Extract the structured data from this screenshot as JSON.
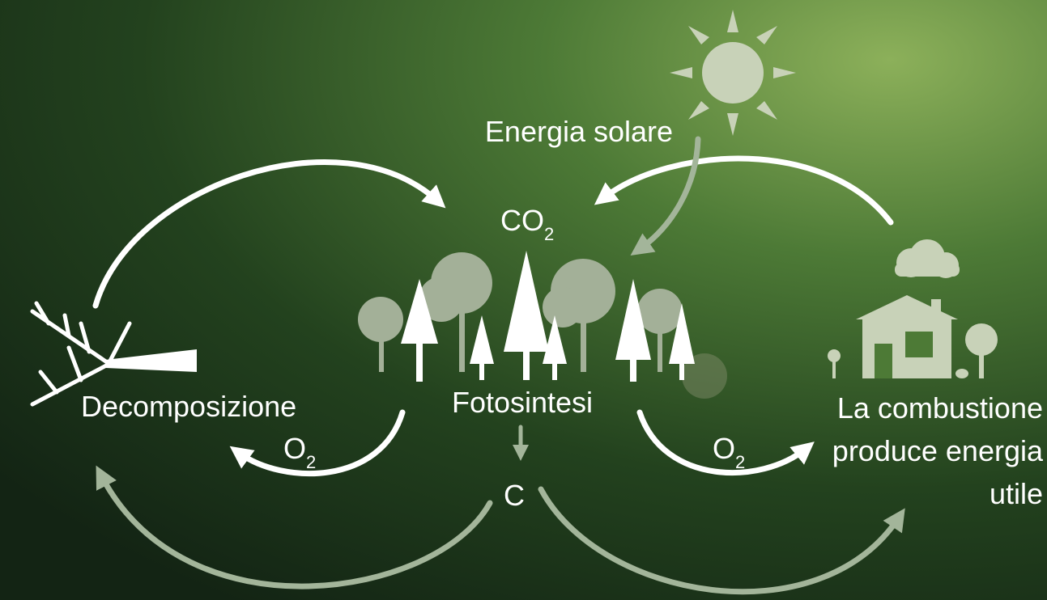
{
  "labels": {
    "solar_energy": "Energia solare",
    "co2": {
      "text": "CO",
      "sub": "2"
    },
    "decomposition": "Decomposizione",
    "photosynthesis": "Fotosintesi",
    "o2_left": {
      "text": "O",
      "sub": "2"
    },
    "carbon": "C",
    "o2_right": {
      "text": "O",
      "sub": "2"
    },
    "combustion": [
      "La combustione",
      "produce energia",
      "utile"
    ]
  }
}
